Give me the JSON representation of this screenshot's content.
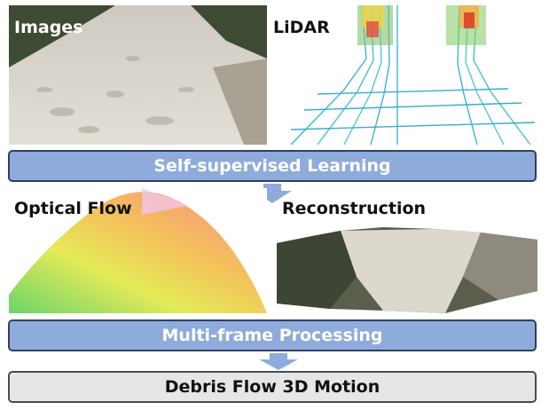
{
  "panels": {
    "images": {
      "label": "Images"
    },
    "lidar": {
      "label": "LiDAR"
    },
    "optical_flow": {
      "label": "Optical Flow"
    },
    "reconstruction": {
      "label": "Reconstruction"
    }
  },
  "steps": {
    "self_supervised": "Self-supervised Learning",
    "multi_frame": "Multi-frame Processing",
    "output": "Debris Flow 3D Motion"
  },
  "colors": {
    "step_fill": "#8fabdc",
    "step_border": "#2f3f62",
    "arrow": "#8fabdc",
    "output_fill": "#e6e6e6"
  }
}
